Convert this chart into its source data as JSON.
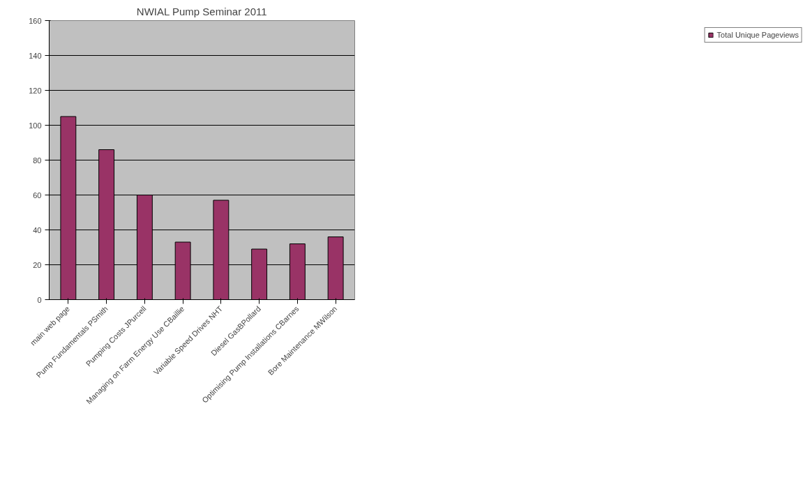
{
  "chart_data": {
    "type": "bar",
    "title": "NWIAL Pump Seminar 2011",
    "categories": [
      "main web page",
      "Pump Fundamentals PSmith",
      "Pumping Costs JPurcell",
      "Managing on Farm Energy Use CBaillie",
      "Variable Speed Drives NHT",
      "Diesel GasBPollard",
      "Optimising Pump Installations CBarnes",
      "Bore Maintenance MWilson"
    ],
    "series": [
      {
        "name": "Total Unique Pageviews",
        "color": "#993366",
        "values": [
          105,
          86,
          60,
          33,
          57,
          29,
          32,
          36
        ]
      }
    ],
    "ylim": [
      0,
      160
    ],
    "yticks": [
      0,
      20,
      40,
      60,
      80,
      100,
      120,
      140,
      160
    ],
    "grid": "y",
    "legend": "right"
  }
}
